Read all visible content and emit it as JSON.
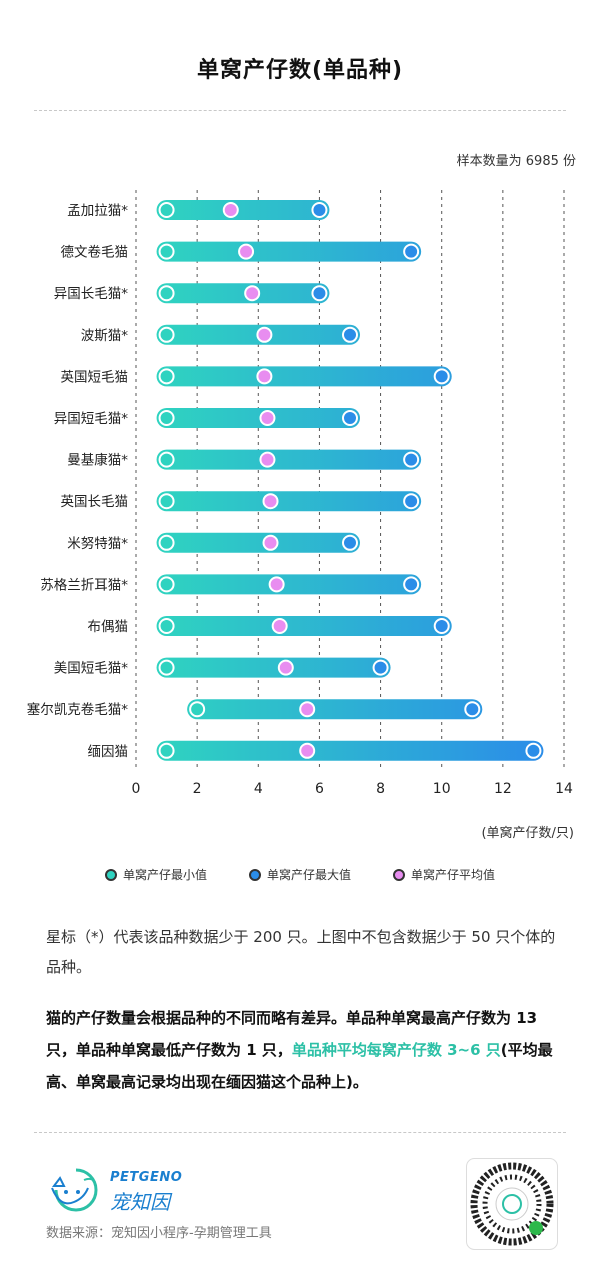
{
  "title": "单窝产仔数(单品种)",
  "sample_note": "样本数量为 6985 份",
  "unit_label": "(单窝产仔数/只)",
  "legend": {
    "min": "单窝产仔最小值",
    "max": "单窝产仔最大值",
    "avg": "单窝产仔平均值"
  },
  "colors": {
    "min": "#2fd3c0",
    "max": "#2b8de8",
    "avg": "#e88df0",
    "highlight": "#2cc0a6",
    "brand": "#1a7fcf"
  },
  "note": "星标（*）代表该品种数据少于 200 只。上图中不包含数据少于 50 只个体的品种。",
  "summary": {
    "part1": "猫的产仔数量会根据品种的不同而略有差异。单品种单窝最高产仔数为 13 只，单品种单窝最低产仔数为 1 只，",
    "highlight": "单品种平均每窝产仔数 3~6 只",
    "part2": "(平均最高、单窝最高记录均出现在缅因猫这个品种上)。"
  },
  "brand": {
    "en": "PETGENO",
    "cn": "宠知因",
    "logo_icon": "cat-dog-logo-icon"
  },
  "source": "数据来源：宠知因小程序-孕期管理工具",
  "qr_icon": "qr-code-icon",
  "chart_data": {
    "type": "range-dot",
    "xlim": [
      0,
      14
    ],
    "xticks": [
      0,
      2,
      4,
      6,
      8,
      10,
      12,
      14
    ],
    "grid": "vertical-dashed",
    "legend_position": "bottom",
    "categories": [
      "孟加拉猫*",
      "德文卷毛猫",
      "异国长毛猫*",
      "波斯猫*",
      "英国短毛猫",
      "异国短毛猫*",
      "曼基康猫*",
      "英国长毛猫",
      "米努特猫*",
      "苏格兰折耳猫*",
      "布偶猫",
      "美国短毛猫*",
      "塞尔凯克卷毛猫*",
      "缅因猫"
    ],
    "series": [
      {
        "name": "单窝产仔最小值",
        "values": [
          1,
          1,
          1,
          1,
          1,
          1,
          1,
          1,
          1,
          1,
          1,
          1,
          2,
          1
        ]
      },
      {
        "name": "单窝产仔最大值",
        "values": [
          6,
          9,
          6,
          7,
          10,
          7,
          9,
          9,
          7,
          9,
          10,
          8,
          11,
          13
        ]
      },
      {
        "name": "单窝产仔平均值",
        "values": [
          3.1,
          3.6,
          3.8,
          4.2,
          4.2,
          4.3,
          4.3,
          4.4,
          4.4,
          4.6,
          4.7,
          4.9,
          5.6,
          5.6
        ]
      }
    ]
  }
}
